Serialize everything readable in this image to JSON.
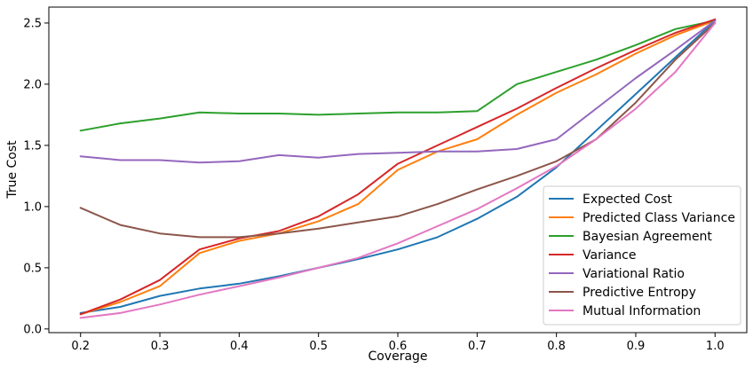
{
  "chart_data": {
    "type": "line",
    "title": "",
    "xlabel": "Coverage",
    "ylabel": "True Cost",
    "xlim": [
      0.16,
      1.04
    ],
    "ylim": [
      -0.03,
      2.63
    ],
    "xticks": [
      0.2,
      0.3,
      0.4,
      0.5,
      0.6,
      0.7,
      0.8,
      0.9,
      1.0
    ],
    "xtick_labels": [
      "0.2",
      "0.3",
      "0.4",
      "0.5",
      "0.6",
      "0.7",
      "0.8",
      "0.9",
      "1.0"
    ],
    "yticks": [
      0.0,
      0.5,
      1.0,
      1.5,
      2.0,
      2.5
    ],
    "ytick_labels": [
      "0.0",
      "0.5",
      "1.0",
      "1.5",
      "2.0",
      "2.5"
    ],
    "grid": false,
    "legend_position": "bottom-right",
    "x": [
      0.2,
      0.25,
      0.3,
      0.35,
      0.4,
      0.45,
      0.5,
      0.55,
      0.6,
      0.65,
      0.7,
      0.75,
      0.8,
      0.85,
      0.9,
      0.95,
      1.0
    ],
    "series": [
      {
        "name": "Expected Cost",
        "color": "#1f77b4",
        "values": [
          0.13,
          0.18,
          0.27,
          0.33,
          0.37,
          0.43,
          0.5,
          0.57,
          0.65,
          0.75,
          0.9,
          1.08,
          1.32,
          1.62,
          1.92,
          2.22,
          2.52
        ]
      },
      {
        "name": "Predicted Class Variance",
        "color": "#ff7f0e",
        "values": [
          0.12,
          0.22,
          0.35,
          0.62,
          0.72,
          0.78,
          0.88,
          1.02,
          1.3,
          1.45,
          1.55,
          1.75,
          1.93,
          2.08,
          2.25,
          2.4,
          2.52
        ]
      },
      {
        "name": "Bayesian Agreement",
        "color": "#2ca02c",
        "values": [
          1.62,
          1.68,
          1.72,
          1.77,
          1.76,
          1.76,
          1.75,
          1.76,
          1.77,
          1.77,
          1.78,
          2.0,
          2.1,
          2.2,
          2.32,
          2.45,
          2.52
        ]
      },
      {
        "name": "Variance",
        "color": "#d62728",
        "values": [
          0.12,
          0.24,
          0.4,
          0.65,
          0.74,
          0.8,
          0.92,
          1.1,
          1.35,
          1.5,
          1.65,
          1.8,
          1.97,
          2.13,
          2.28,
          2.42,
          2.53
        ]
      },
      {
        "name": "Variational Ratio",
        "color": "#9467bd",
        "values": [
          1.41,
          1.38,
          1.38,
          1.36,
          1.37,
          1.42,
          1.4,
          1.43,
          1.44,
          1.45,
          1.45,
          1.47,
          1.55,
          1.8,
          2.05,
          2.28,
          2.52
        ]
      },
      {
        "name": "Predictive Entropy",
        "color": "#8c564b",
        "values": [
          0.99,
          0.85,
          0.78,
          0.75,
          0.75,
          0.78,
          0.82,
          0.87,
          0.92,
          1.02,
          1.14,
          1.25,
          1.37,
          1.55,
          1.85,
          2.2,
          2.5
        ]
      },
      {
        "name": "Mutual Information",
        "color": "#e377c2",
        "values": [
          0.09,
          0.13,
          0.2,
          0.28,
          0.35,
          0.42,
          0.5,
          0.58,
          0.7,
          0.84,
          0.98,
          1.15,
          1.33,
          1.55,
          1.8,
          2.1,
          2.5
        ]
      }
    ]
  }
}
